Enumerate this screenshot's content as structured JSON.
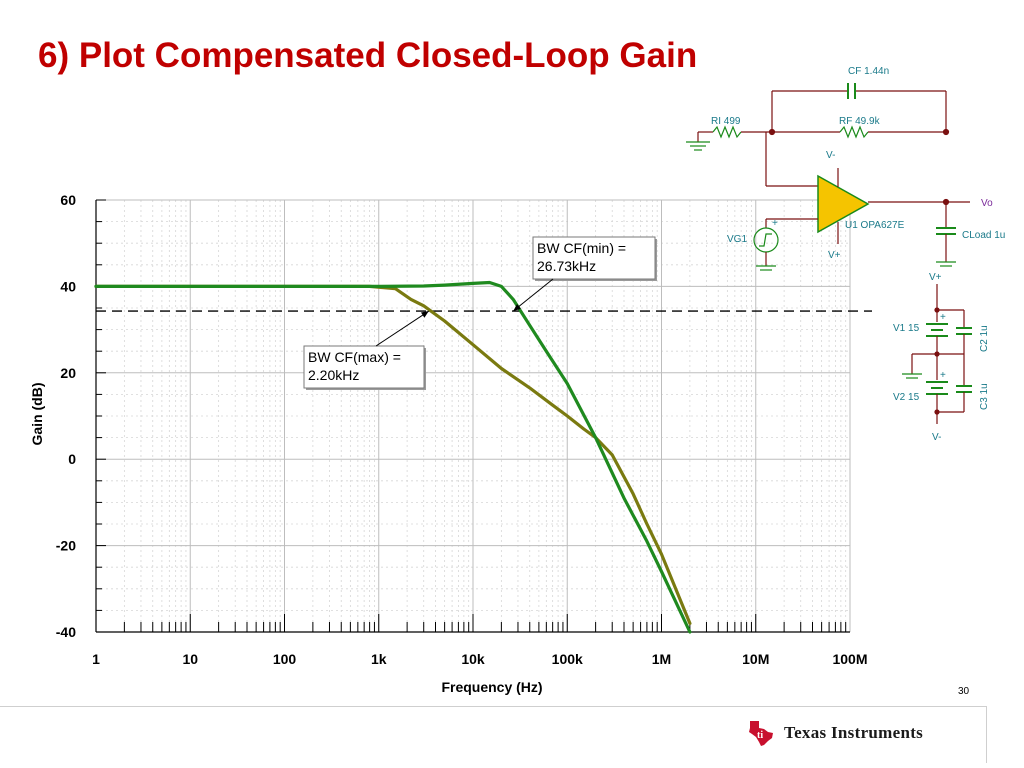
{
  "slide": {
    "title": "6) Plot Compensated Closed-Loop Gain",
    "page_number": "30",
    "logo_text_1": "Texas",
    "logo_text_2": "Instruments"
  },
  "chart_data": {
    "type": "line",
    "title": "",
    "xlabel": "Frequency (Hz)",
    "ylabel": "Gain (dB)",
    "x_scale": "log",
    "xlim": [
      1,
      100000000
    ],
    "ylim": [
      -40,
      60
    ],
    "x_ticks": [
      {
        "value": 1,
        "label": "1"
      },
      {
        "value": 10,
        "label": "10"
      },
      {
        "value": 100,
        "label": "100"
      },
      {
        "value": 1000,
        "label": "1k"
      },
      {
        "value": 10000,
        "label": "10k"
      },
      {
        "value": 100000,
        "label": "100k"
      },
      {
        "value": 1000000,
        "label": "1M"
      },
      {
        "value": 10000000,
        "label": "10M"
      },
      {
        "value": 100000000,
        "label": "100M"
      }
    ],
    "y_ticks": [
      {
        "value": 60,
        "label": "60"
      },
      {
        "value": 40,
        "label": "40"
      },
      {
        "value": 20,
        "label": "20"
      },
      {
        "value": 0,
        "label": "0"
      },
      {
        "value": -20,
        "label": "-20"
      },
      {
        "value": -40,
        "label": "-40"
      }
    ],
    "grid": true,
    "reference_line": {
      "y": 34.3,
      "style": "dashed",
      "color": "#000000"
    },
    "series": [
      {
        "color": "#1f8a1f",
        "points": [
          [
            1,
            40
          ],
          [
            1000,
            40
          ],
          [
            3000,
            40.1
          ],
          [
            5000,
            40.3
          ],
          [
            10000,
            40.7
          ],
          [
            15000,
            40.9
          ],
          [
            20000,
            40
          ],
          [
            26730,
            37
          ],
          [
            40000,
            31
          ],
          [
            60000,
            25
          ],
          [
            100000,
            17.5
          ],
          [
            200000,
            5
          ],
          [
            400000,
            -9
          ],
          [
            700000,
            -19
          ],
          [
            1000000,
            -26
          ],
          [
            2000000,
            -40
          ]
        ]
      },
      {
        "color": "#7a7a10",
        "points": [
          [
            1,
            40
          ],
          [
            800,
            40
          ],
          [
            1500,
            39.5
          ],
          [
            2200,
            37
          ],
          [
            3000,
            35.5
          ],
          [
            5000,
            32
          ],
          [
            10000,
            26.5
          ],
          [
            20000,
            21
          ],
          [
            40000,
            16.5
          ],
          [
            70000,
            12.5
          ],
          [
            100000,
            10
          ],
          [
            150000,
            7
          ],
          [
            200000,
            5
          ],
          [
            300000,
            1
          ],
          [
            500000,
            -8
          ],
          [
            700000,
            -15
          ],
          [
            1000000,
            -22
          ],
          [
            2000000,
            -38
          ]
        ]
      }
    ],
    "annotations": [
      {
        "line1": "BW CF(min) =",
        "line2": "26.73kHz",
        "target": [
          26730,
          34.3
        ]
      },
      {
        "line1": "BW CF(max) =",
        "line2": "2.20kHz",
        "target": [
          3400,
          34.3
        ]
      }
    ]
  },
  "schematic": {
    "cf_label": "CF 1.44n",
    "ri_label": "RI 499",
    "rf_label": "RF 49.9k",
    "opamp_label": "U1 OPA627E",
    "vminus_top": "V-",
    "vplus_bottom": "V+",
    "vg1_label": "VG1",
    "vo_label": "Vo",
    "cload_label": "CLoad 1u",
    "vplus_supply": "V+",
    "v1_label": "V1 15",
    "v2_label": "V2 15",
    "c2_label": "C2 1u",
    "c3_label": "C3 1u",
    "vminus_supply": "V-",
    "plus_sign": "+",
    "minus_sign": "-"
  }
}
